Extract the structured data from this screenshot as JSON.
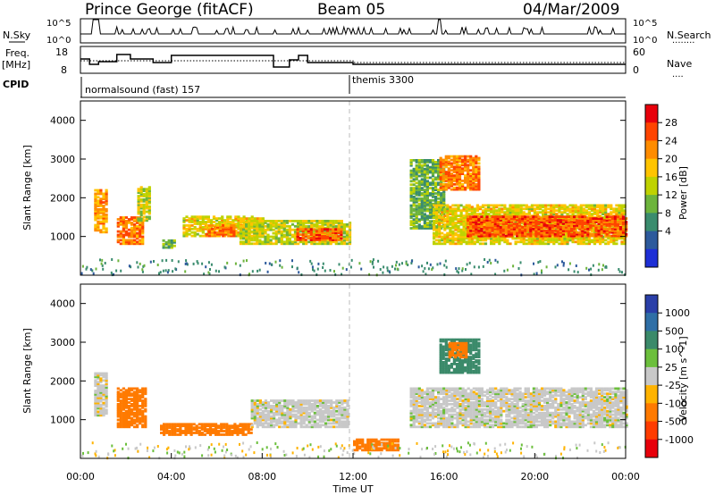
{
  "header": {
    "station": "Prince George (fitACF)",
    "beam": "Beam 05",
    "date": "04/Mar/2009"
  },
  "summary_labels": {
    "nsky": "N.Sky",
    "nsearch": "N.Search",
    "freq_top": "Freq.",
    "freq_unit": "[MHz]",
    "nave": "Nave",
    "cpid": "CPID",
    "dots": "........",
    "dots_short": "...."
  },
  "summary_ticks": {
    "nsky_left_top": "10^5",
    "nsky_left_bottom": "10^0",
    "nsky_right_top": "10^5",
    "nsky_right_bottom": "10^0",
    "freq_left_top": "18",
    "freq_left_bottom": "8",
    "nave_right_top": "60",
    "nave_right_bottom": "0"
  },
  "cpid_modes": [
    {
      "label": "normalsound (fast) 157",
      "start_hour": 0
    },
    {
      "label": "themis 3300",
      "start_hour": 12
    }
  ],
  "power_colorbar": {
    "label": "Power [dB]",
    "ticks": [
      "28",
      "24",
      "20",
      "16",
      "12",
      "8",
      "4"
    ],
    "colors": [
      "#e8000b",
      "#ff4400",
      "#ff8c00",
      "#ffc400",
      "#bfd200",
      "#6db43c",
      "#3a8c6e",
      "#2d5a9c",
      "#1e2fd6"
    ]
  },
  "velocity_colorbar": {
    "label": "Velocity [m s^-1]",
    "ticks": [
      "1000",
      "500",
      "100",
      "25",
      "-25",
      "-100",
      "-500",
      "-1000"
    ],
    "colors": [
      "#2a3fa8",
      "#2f6fa6",
      "#3b8a6a",
      "#6cbf3c",
      "#c8c8c8",
      "#ffb300",
      "#ff7a00",
      "#ff3c00",
      "#e8000b"
    ]
  },
  "chart_data": [
    {
      "type": "heatmap",
      "title": "Power",
      "ylabel": "Slant Range [km]",
      "ylim": [
        0,
        4500
      ],
      "yticks": [
        "1000",
        "2000",
        "3000",
        "4000"
      ],
      "xlim_hours": [
        0,
        24
      ],
      "xticks": [
        "00:00",
        "04:00",
        "08:00",
        "12:00",
        "16:00",
        "20:00",
        "00:00"
      ],
      "colorbar_unit": "dB",
      "bands": [
        {
          "t0": 0.6,
          "t1": 1.1,
          "r0": 1100,
          "r1": 2200,
          "value": 22
        },
        {
          "t0": 1.6,
          "t1": 2.8,
          "r0": 800,
          "r1": 1500,
          "value": 24
        },
        {
          "t0": 2.5,
          "t1": 3.0,
          "r0": 1400,
          "r1": 2300,
          "value": 16
        },
        {
          "t0": 3.6,
          "t1": 4.2,
          "r0": 700,
          "r1": 900,
          "value": 12
        },
        {
          "t0": 4.5,
          "t1": 8.0,
          "r0": 1000,
          "r1": 1500,
          "value": 18
        },
        {
          "t0": 5.5,
          "t1": 6.8,
          "r0": 1000,
          "r1": 1300,
          "value": 24
        },
        {
          "t0": 7.0,
          "t1": 11.8,
          "r0": 800,
          "r1": 1400,
          "value": 16
        },
        {
          "t0": 9.5,
          "t1": 11.5,
          "r0": 900,
          "r1": 1200,
          "value": 26
        },
        {
          "t0": 14.5,
          "t1": 16.0,
          "r0": 1200,
          "r1": 3000,
          "value": 12
        },
        {
          "t0": 15.8,
          "t1": 17.5,
          "r0": 2200,
          "r1": 3100,
          "value": 24
        },
        {
          "t0": 15.5,
          "t1": 24.0,
          "r0": 800,
          "r1": 1800,
          "value": 18
        },
        {
          "t0": 17.0,
          "t1": 24.0,
          "r0": 1000,
          "r1": 1500,
          "value": 26
        }
      ]
    },
    {
      "type": "heatmap",
      "title": "Velocity",
      "ylabel": "Slant Range [km]",
      "ylim": [
        0,
        4500
      ],
      "yticks": [
        "1000",
        "2000",
        "3000",
        "4000"
      ],
      "xlim_hours": [
        0,
        24
      ],
      "xticks": [
        "00:00",
        "04:00",
        "08:00",
        "12:00",
        "16:00",
        "20:00",
        "00:00"
      ],
      "xlabel": "Time UT",
      "colorbar_unit": "m s^-1",
      "bands": [
        {
          "t0": 0.6,
          "t1": 1.1,
          "r0": 1100,
          "r1": 2200,
          "value": 0
        },
        {
          "t0": 1.6,
          "t1": 2.9,
          "r0": 800,
          "r1": 1800,
          "value": -300
        },
        {
          "t0": 3.5,
          "t1": 7.5,
          "r0": 600,
          "r1": 900,
          "value": -300
        },
        {
          "t0": 7.5,
          "t1": 11.8,
          "r0": 800,
          "r1": 1500,
          "value": 0
        },
        {
          "t0": 12.0,
          "t1": 14.0,
          "r0": 200,
          "r1": 500,
          "value": -200
        },
        {
          "t0": 14.5,
          "t1": 24.0,
          "r0": 800,
          "r1": 1800,
          "value": 0
        },
        {
          "t0": 15.8,
          "t1": 17.5,
          "r0": 2200,
          "r1": 3100,
          "value": 150
        },
        {
          "t0": 16.2,
          "t1": 17.0,
          "r0": 2600,
          "r1": 3000,
          "value": -200
        }
      ]
    }
  ]
}
